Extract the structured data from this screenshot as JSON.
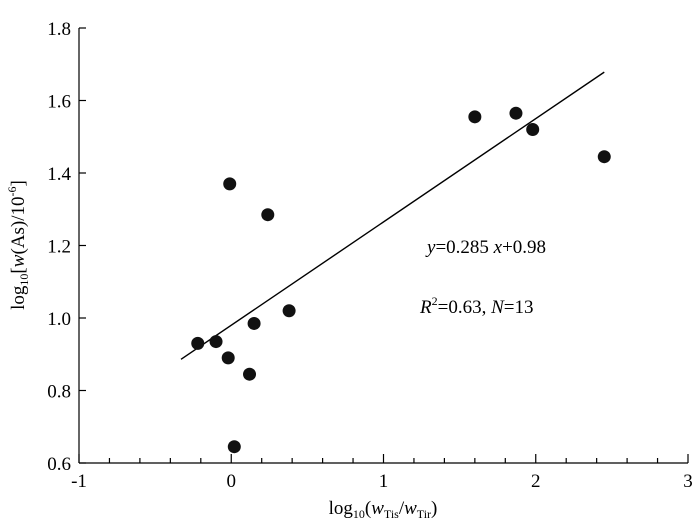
{
  "chart_data": {
    "type": "scatter",
    "xlabel": {
      "prefix": "log",
      "sub": "10",
      "open": "(",
      "w1": "w",
      "w1_sub": "Tis",
      "slash": "/",
      "w2": "w",
      "w2_sub": "Tir",
      "close": ")"
    },
    "ylabel": {
      "prefix": "log",
      "sub": "10",
      "open": "[",
      "w": "w",
      "mid": "(As)/10",
      "exp": "-6",
      "close": "]"
    },
    "xlim": [
      -1,
      3
    ],
    "ylim": [
      0.6,
      1.8
    ],
    "xticks": [
      "-1",
      "0",
      "1",
      "2",
      "3"
    ],
    "yticks": [
      "0.6",
      "0.8",
      "1.0",
      "1.2",
      "1.4",
      "1.6",
      "1.8"
    ],
    "x_minor_step": 0.2,
    "grid": false,
    "points": [
      {
        "x": -0.22,
        "y": 0.93
      },
      {
        "x": -0.1,
        "y": 0.935
      },
      {
        "x": -0.02,
        "y": 0.89
      },
      {
        "x": -0.01,
        "y": 1.37
      },
      {
        "x": 0.02,
        "y": 0.645
      },
      {
        "x": 0.12,
        "y": 0.845
      },
      {
        "x": 0.15,
        "y": 0.985
      },
      {
        "x": 0.24,
        "y": 1.285
      },
      {
        "x": 0.38,
        "y": 1.02
      },
      {
        "x": 1.6,
        "y": 1.555
      },
      {
        "x": 1.87,
        "y": 1.565
      },
      {
        "x": 1.98,
        "y": 1.52
      },
      {
        "x": 2.45,
        "y": 1.445
      }
    ],
    "fit": {
      "slope": 0.285,
      "intercept": 0.98,
      "x_start": -0.33,
      "x_end": 2.45
    },
    "equation": {
      "y": "y",
      "mid": "=0.285 ",
      "x": "x",
      "end": "+0.98"
    },
    "stats": {
      "R": "R",
      "exp": "2",
      "mid": "=0.63, ",
      "N": "N",
      "end": "=13"
    }
  }
}
